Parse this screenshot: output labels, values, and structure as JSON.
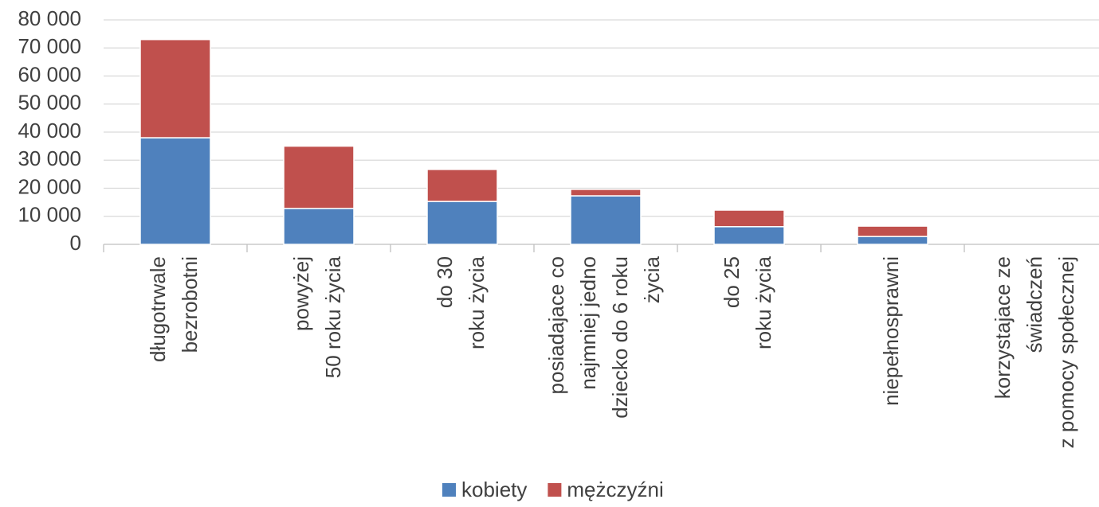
{
  "chart_data": {
    "type": "stacked_bar",
    "categories": [
      [
        "długotrwale",
        "bezrobotni"
      ],
      [
        "powyżej",
        "50 roku życia"
      ],
      [
        "do 30",
        "roku życia"
      ],
      [
        "posiadajace co",
        "najmniej jedno",
        "dziecko do 6 roku",
        "życia"
      ],
      [
        "do 25",
        "roku życia"
      ],
      [
        "niepełnosprawni"
      ],
      [
        "korzystajace ze",
        "świadczeń",
        "z pomocy społecznej"
      ]
    ],
    "series": [
      {
        "name": "kobiety",
        "color": "#4f81bd",
        "values": [
          38000,
          12800,
          15300,
          17300,
          6300,
          2800,
          0
        ]
      },
      {
        "name": "mężczyźni",
        "color": "#c0504d",
        "values": [
          35000,
          22200,
          11400,
          2300,
          5900,
          3700,
          0
        ]
      }
    ],
    "ylim": [
      0,
      80000
    ],
    "yticks": [
      0,
      {
        "value": 10000,
        "label": "10 000"
      },
      {
        "value": 20000,
        "label": "20 000"
      },
      {
        "value": 30000,
        "label": "30 000"
      },
      {
        "value": 40000,
        "label": "40 000"
      },
      {
        "value": 50000,
        "label": "50 000"
      },
      {
        "value": 60000,
        "label": "60 000"
      },
      {
        "value": 70000,
        "label": "70 000"
      },
      {
        "value": 80000,
        "label": "80 000"
      }
    ],
    "grid": true,
    "legend": "bottom"
  }
}
